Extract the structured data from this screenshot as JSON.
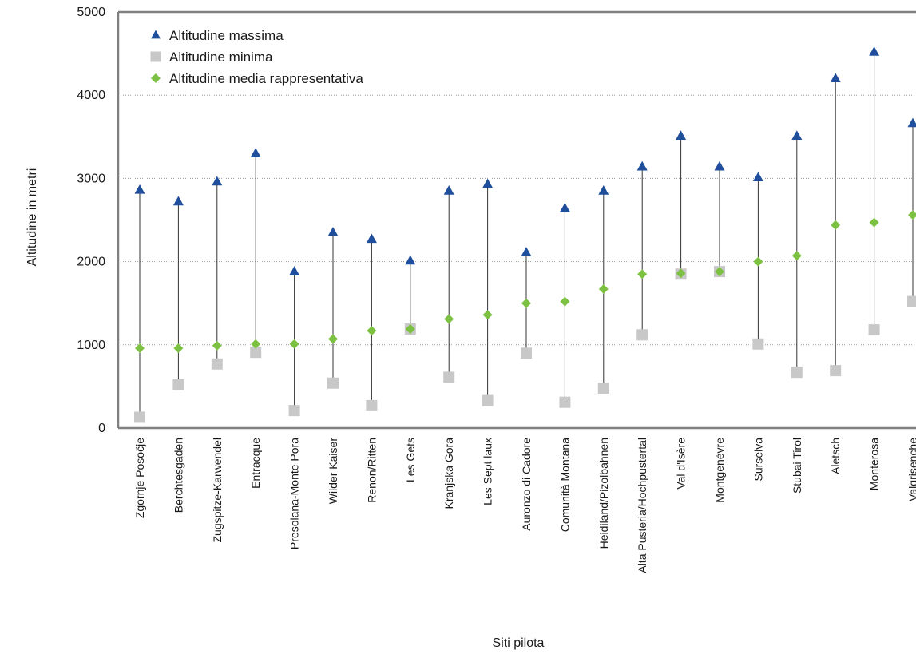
{
  "chart_data": {
    "type": "scatter",
    "xlabel": "Siti pilota",
    "ylabel": "Altitudine in metri",
    "ylim": [
      0,
      5000
    ],
    "yticks": [
      0,
      1000,
      2000,
      3000,
      4000,
      5000
    ],
    "grid": "horizontal dotted",
    "legend_position": "top-left",
    "categories": [
      "Zgornje Posočje",
      "Berchtesgaden",
      "Zugspitze-Karwendel",
      "Entracque",
      "Presolana-Monte Pora",
      "Wilder Kaiser",
      "Renon/Ritten",
      "Les Gets",
      "Kranjska Gora",
      "Les Sept laux",
      "Auronzo di Cadore",
      "Comunità Montana",
      "Heidiland/Pizolbahnen",
      "Alta Pusteria/Hochpustertal",
      "Val d'Isère",
      "Montgenèvre",
      "Surselva",
      "Stubai Tirol",
      "Aletsch",
      "Monterosa",
      "Valgrisenche"
    ],
    "series": [
      {
        "name": "Altitudine massima",
        "marker": "triangle",
        "color": "#1f4e9c",
        "values": [
          2860,
          2720,
          2960,
          3300,
          1880,
          2350,
          2270,
          2010,
          2850,
          2930,
          2110,
          2640,
          2850,
          3140,
          3510,
          3140,
          3010,
          3510,
          4200,
          4520,
          3660
        ]
      },
      {
        "name": "Altitudine minima",
        "marker": "square",
        "color": "#c8c8c8",
        "values": [
          130,
          520,
          770,
          910,
          210,
          540,
          270,
          1190,
          610,
          330,
          900,
          310,
          480,
          1120,
          1850,
          1880,
          1010,
          670,
          690,
          1180,
          1520
        ]
      },
      {
        "name": "Altitudine media rappresentativa",
        "marker": "diamond",
        "color": "#7dc142",
        "values": [
          960,
          960,
          990,
          1010,
          1010,
          1070,
          1170,
          1190,
          1310,
          1360,
          1500,
          1520,
          1670,
          1850,
          1860,
          1880,
          2000,
          2070,
          2440,
          2470,
          2560
        ]
      }
    ]
  }
}
